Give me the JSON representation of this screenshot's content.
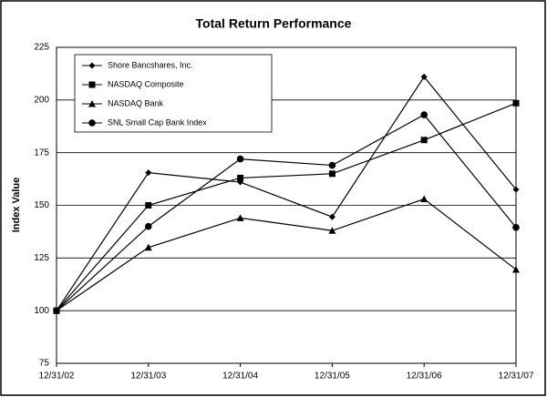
{
  "chart_data": {
    "type": "line",
    "title": "Total Return Performance",
    "y_label": "Index Value",
    "categories": [
      "12/31/02",
      "12/31/03",
      "12/31/04",
      "12/31/05",
      "12/31/06",
      "12/31/07"
    ],
    "series": [
      {
        "name": "Shore Bancshares, Inc.",
        "color": "#000000",
        "marker": "diamond",
        "values": [
          100,
          165.5,
          161,
          144.5,
          211,
          157.5
        ]
      },
      {
        "name": "NASDAQ Composite",
        "color": "#000000",
        "marker": "square",
        "values": [
          100,
          150,
          163,
          165,
          181,
          198.5
        ]
      },
      {
        "name": "NASDAQ Bank",
        "color": "#000000",
        "marker": "triangle",
        "values": [
          100,
          130,
          144,
          138,
          153,
          119.5
        ]
      },
      {
        "name": "SNL Small Cap Bank Index",
        "color": "#000000",
        "marker": "circle",
        "values": [
          100,
          140,
          172,
          169,
          193,
          139.5
        ]
      }
    ],
    "ylim": [
      75,
      225
    ],
    "yticks": [
      75,
      100,
      125,
      150,
      175,
      200,
      225
    ],
    "grid": true,
    "legend": "upper left"
  }
}
